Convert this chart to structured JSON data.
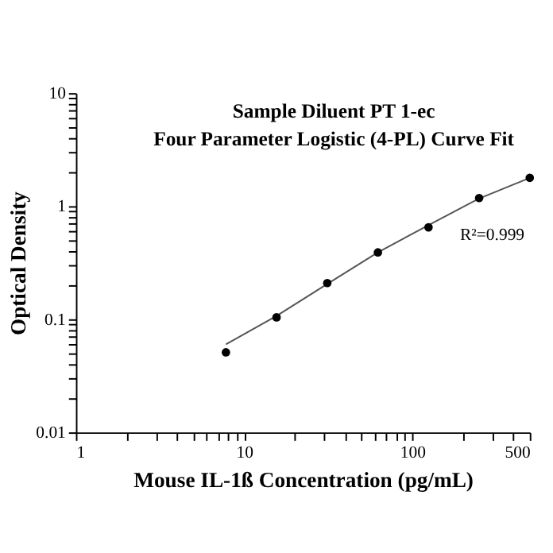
{
  "chart_data": {
    "type": "scatter",
    "title": "Sample Diluent PT 1-ec\nFour Parameter Logistic (4-PL) Curve Fit",
    "xlabel": "Mouse IL-1ß Concentration (pg/mL)",
    "ylabel": "Optical Density",
    "annotations": [
      "R²=0.999"
    ],
    "log": "xy",
    "grid": false,
    "legend": false,
    "xlim": [
      1,
      500
    ],
    "ylim": [
      0.01,
      10
    ],
    "xticks": [
      1,
      {
        "value": 2,
        "label": null
      },
      {
        "value": 3,
        "label": null
      },
      {
        "value": 4,
        "label": null
      },
      {
        "value": 5,
        "label": null
      },
      {
        "value": 6,
        "label": null
      },
      {
        "value": 7,
        "label": null
      },
      {
        "value": 8,
        "label": null
      },
      {
        "value": 9,
        "label": null
      },
      10,
      {
        "value": 20,
        "label": null
      },
      {
        "value": 30,
        "label": null
      },
      {
        "value": 40,
        "label": null
      },
      {
        "value": 50,
        "label": null
      },
      {
        "value": 60,
        "label": null
      },
      {
        "value": 70,
        "label": null
      },
      {
        "value": 80,
        "label": null
      },
      {
        "value": 90,
        "label": null
      },
      100,
      {
        "value": 200,
        "label": null
      },
      {
        "value": 300,
        "label": null
      },
      {
        "value": 400,
        "label": null
      },
      500
    ],
    "yticks": [
      0.01,
      {
        "value": 0.02,
        "label": null
      },
      {
        "value": 0.03,
        "label": null
      },
      {
        "value": 0.04,
        "label": null
      },
      {
        "value": 0.05,
        "label": null
      },
      {
        "value": 0.06,
        "label": null
      },
      {
        "value": 0.07,
        "label": null
      },
      {
        "value": 0.08,
        "label": null
      },
      {
        "value": 0.09,
        "label": null
      },
      0.1,
      {
        "value": 0.2,
        "label": null
      },
      {
        "value": 0.3,
        "label": null
      },
      {
        "value": 0.4,
        "label": null
      },
      {
        "value": 0.5,
        "label": null
      },
      {
        "value": 0.6,
        "label": null
      },
      {
        "value": 0.7,
        "label": null
      },
      {
        "value": 0.8,
        "label": null
      },
      {
        "value": 0.9,
        "label": null
      },
      1,
      {
        "value": 2,
        "label": null
      },
      {
        "value": 3,
        "label": null
      },
      {
        "value": 4,
        "label": null
      },
      {
        "value": 5,
        "label": null
      },
      {
        "value": 6,
        "label": null
      },
      {
        "value": 7,
        "label": null
      },
      {
        "value": 8,
        "label": null
      },
      {
        "value": 9,
        "label": null
      },
      10
    ],
    "series": [
      {
        "type": "line",
        "color": "#555555",
        "line_style": "solid",
        "marker": "none",
        "x": [
          7.8,
          15.6,
          31.25,
          62.5,
          125,
          250,
          500
        ],
        "values": [
          0.06,
          0.107,
          0.205,
          0.39,
          0.68,
          1.17,
          1.78
        ]
      },
      {
        "color": "#000000",
        "marker": "circle",
        "x": [
          7.8,
          15.6,
          31.25,
          62.5,
          125,
          250,
          500
        ],
        "values": [
          0.051,
          0.104,
          0.209,
          0.39,
          0.65,
          1.18,
          1.78
        ]
      }
    ]
  }
}
